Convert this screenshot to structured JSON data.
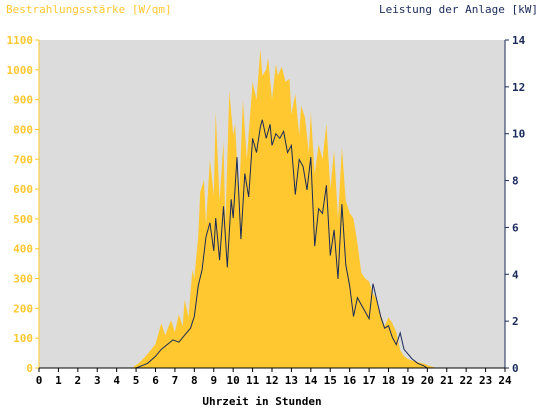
{
  "chart_data": {
    "type": "area",
    "title_left": "Bestrahlungsstärke [W/qm]",
    "title_right": "Leistung der Anlage [kW]",
    "xlabel": "Uhrzeit in Stunden",
    "x_ticks": [
      "0",
      "1",
      "2",
      "3",
      "4",
      "5",
      "6",
      "7",
      "8",
      "9",
      "10",
      "11",
      "12",
      "13",
      "14",
      "15",
      "16",
      "17",
      "18",
      "19",
      "20",
      "21",
      "22",
      "23",
      "24"
    ],
    "y_left_ticks": [
      "0",
      "100",
      "200",
      "300",
      "400",
      "500",
      "600",
      "700",
      "800",
      "900",
      "1000",
      "1100"
    ],
    "y_right_ticks": [
      "0",
      "2",
      "4",
      "6",
      "8",
      "10",
      "12",
      "14"
    ],
    "xlim": [
      0,
      24
    ],
    "ylim_left": [
      0,
      1100
    ],
    "ylim_right": [
      0,
      14
    ],
    "grid": false,
    "series": [
      {
        "name": "Bestrahlungsstärke",
        "axis": "left",
        "style": "filled-area",
        "x": [
          0,
          4.8,
          5.2,
          5.5,
          6,
          6.3,
          6.5,
          6.8,
          7,
          7.2,
          7.4,
          7.5,
          7.7,
          7.9,
          8,
          8.2,
          8.3,
          8.5,
          8.6,
          8.8,
          9,
          9.1,
          9.3,
          9.5,
          9.6,
          9.8,
          10,
          10.1,
          10.3,
          10.5,
          10.7,
          11,
          11.2,
          11.4,
          11.5,
          11.7,
          11.8,
          12,
          12.2,
          12.3,
          12.5,
          12.7,
          12.9,
          13,
          13.2,
          13.4,
          13.5,
          13.7,
          13.9,
          14,
          14.2,
          14.4,
          14.6,
          14.8,
          15,
          15.2,
          15.4,
          15.6,
          15.8,
          16,
          16.2,
          16.4,
          16.6,
          16.8,
          17,
          17.2,
          17.4,
          17.6,
          17.8,
          18,
          18.2,
          18.4,
          18.6,
          18.8,
          19,
          19.2,
          19.5,
          19.8,
          20,
          20.2,
          20.5,
          24
        ],
        "y": [
          0,
          0,
          20,
          40,
          80,
          150,
          110,
          160,
          120,
          180,
          140,
          230,
          170,
          330,
          300,
          440,
          590,
          630,
          480,
          700,
          580,
          860,
          560,
          760,
          480,
          930,
          780,
          820,
          560,
          900,
          700,
          960,
          900,
          1070,
          980,
          1000,
          1040,
          900,
          1020,
          980,
          1010,
          960,
          970,
          850,
          920,
          780,
          880,
          840,
          720,
          860,
          650,
          750,
          700,
          820,
          600,
          730,
          500,
          740,
          560,
          520,
          500,
          420,
          320,
          300,
          290,
          250,
          230,
          180,
          140,
          170,
          150,
          120,
          60,
          40,
          30,
          25,
          20,
          15,
          10,
          5,
          0,
          0
        ]
      },
      {
        "name": "Leistung der Anlage",
        "axis": "right",
        "style": "line",
        "x": [
          0,
          5,
          5.3,
          5.6,
          6,
          6.3,
          6.6,
          6.9,
          7.2,
          7.5,
          7.8,
          8,
          8.2,
          8.4,
          8.6,
          8.8,
          9,
          9.1,
          9.3,
          9.5,
          9.7,
          9.9,
          10,
          10.2,
          10.4,
          10.6,
          10.8,
          11,
          11.2,
          11.4,
          11.5,
          11.7,
          11.9,
          12,
          12.2,
          12.4,
          12.6,
          12.8,
          13,
          13.2,
          13.4,
          13.6,
          13.8,
          14,
          14.2,
          14.4,
          14.6,
          14.8,
          15,
          15.2,
          15.4,
          15.6,
          15.8,
          16,
          16.2,
          16.4,
          16.6,
          16.8,
          17,
          17.2,
          17.4,
          17.6,
          17.8,
          18,
          18.2,
          18.4,
          18.6,
          18.8,
          19,
          19.2,
          19.5,
          19.8,
          20,
          20.3,
          24
        ],
        "y": [
          0,
          0,
          0.1,
          0.2,
          0.5,
          0.8,
          1.0,
          1.2,
          1.1,
          1.4,
          1.7,
          2.2,
          3.5,
          4.2,
          5.6,
          6.2,
          5.0,
          6.4,
          4.6,
          6.9,
          4.3,
          7.2,
          6.4,
          9.0,
          5.5,
          8.3,
          7.3,
          9.8,
          9.2,
          10.3,
          10.6,
          9.8,
          10.4,
          9.5,
          10.0,
          9.8,
          10.1,
          9.2,
          9.5,
          7.4,
          8.9,
          8.6,
          7.6,
          9.0,
          5.2,
          6.8,
          6.6,
          7.8,
          4.8,
          5.9,
          3.8,
          7.0,
          4.4,
          3.5,
          2.2,
          3.0,
          2.7,
          2.4,
          2.1,
          3.6,
          2.9,
          2.2,
          1.7,
          1.8,
          1.3,
          1.0,
          1.5,
          0.8,
          0.6,
          0.4,
          0.2,
          0.1,
          0,
          0,
          0
        ]
      }
    ],
    "colors": {
      "plot_background": "#dcdcdc",
      "area_fill": "#ffc830",
      "line": "#1a2a5a",
      "left_axis_text": "#ffc830",
      "right_axis_text": "#1a2a5a",
      "title_left_text": "#ffc830",
      "title_right_text": "#1a2a5a"
    }
  }
}
